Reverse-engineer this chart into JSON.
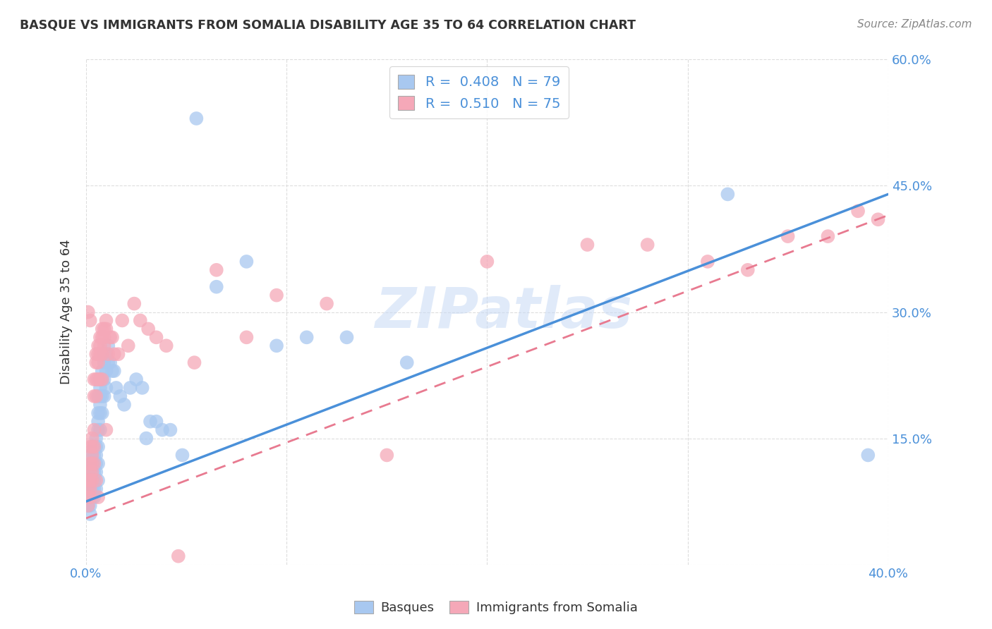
{
  "title": "BASQUE VS IMMIGRANTS FROM SOMALIA DISABILITY AGE 35 TO 64 CORRELATION CHART",
  "source": "Source: ZipAtlas.com",
  "ylabel": "Disability Age 35 to 64",
  "x_min": 0.0,
  "x_max": 0.4,
  "y_min": 0.0,
  "y_max": 0.6,
  "x_tick_positions": [
    0.0,
    0.1,
    0.2,
    0.3,
    0.4
  ],
  "x_tick_labels": [
    "0.0%",
    "",
    "",
    "",
    "40.0%"
  ],
  "y_tick_positions": [
    0.0,
    0.15,
    0.3,
    0.45,
    0.6
  ],
  "y_tick_labels_right": [
    "",
    "15.0%",
    "30.0%",
    "45.0%",
    "60.0%"
  ],
  "basque_color": "#a8c8f0",
  "somalia_color": "#f5a8b8",
  "basque_line_color": "#4a90d9",
  "somalia_line_color": "#e87a90",
  "legend_R1": "0.408",
  "legend_N1": "79",
  "legend_R2": "0.510",
  "legend_N2": "75",
  "legend_label1": "Basques",
  "legend_label2": "Immigrants from Somalia",
  "watermark": "ZIPatlas",
  "background_color": "#ffffff",
  "grid_color": "#dddddd",
  "title_color": "#333333",
  "axis_label_color": "#4a90d9",
  "right_tick_color": "#4a90d9",
  "basque_line_x0": 0.0,
  "basque_line_y0": 0.075,
  "basque_line_x1": 0.4,
  "basque_line_y1": 0.44,
  "somalia_line_x0": 0.0,
  "somalia_line_y0": 0.055,
  "somalia_line_x1": 0.4,
  "somalia_line_y1": 0.415,
  "basque_scatter_x": [
    0.001,
    0.001,
    0.001,
    0.001,
    0.002,
    0.002,
    0.002,
    0.002,
    0.002,
    0.002,
    0.002,
    0.003,
    0.003,
    0.003,
    0.003,
    0.003,
    0.003,
    0.004,
    0.004,
    0.004,
    0.004,
    0.004,
    0.004,
    0.005,
    0.005,
    0.005,
    0.005,
    0.005,
    0.005,
    0.006,
    0.006,
    0.006,
    0.006,
    0.006,
    0.006,
    0.006,
    0.007,
    0.007,
    0.007,
    0.007,
    0.007,
    0.007,
    0.008,
    0.008,
    0.008,
    0.008,
    0.009,
    0.009,
    0.009,
    0.009,
    0.01,
    0.01,
    0.01,
    0.011,
    0.011,
    0.012,
    0.013,
    0.014,
    0.015,
    0.017,
    0.019,
    0.022,
    0.025,
    0.028,
    0.03,
    0.032,
    0.035,
    0.038,
    0.042,
    0.048,
    0.055,
    0.065,
    0.08,
    0.095,
    0.11,
    0.13,
    0.16,
    0.32,
    0.39
  ],
  "basque_scatter_y": [
    0.09,
    0.08,
    0.07,
    0.1,
    0.1,
    0.09,
    0.11,
    0.08,
    0.13,
    0.07,
    0.06,
    0.12,
    0.11,
    0.1,
    0.09,
    0.08,
    0.12,
    0.14,
    0.13,
    0.11,
    0.1,
    0.09,
    0.08,
    0.14,
    0.15,
    0.13,
    0.12,
    0.11,
    0.09,
    0.2,
    0.18,
    0.17,
    0.16,
    0.14,
    0.12,
    0.1,
    0.22,
    0.21,
    0.2,
    0.19,
    0.18,
    0.16,
    0.23,
    0.22,
    0.2,
    0.18,
    0.25,
    0.24,
    0.22,
    0.2,
    0.25,
    0.23,
    0.21,
    0.26,
    0.24,
    0.24,
    0.23,
    0.23,
    0.21,
    0.2,
    0.19,
    0.21,
    0.22,
    0.21,
    0.15,
    0.17,
    0.17,
    0.16,
    0.16,
    0.13,
    0.53,
    0.33,
    0.36,
    0.26,
    0.27,
    0.27,
    0.24,
    0.44,
    0.13
  ],
  "somalia_scatter_x": [
    0.001,
    0.001,
    0.001,
    0.001,
    0.001,
    0.002,
    0.002,
    0.002,
    0.002,
    0.002,
    0.002,
    0.002,
    0.003,
    0.003,
    0.003,
    0.003,
    0.003,
    0.003,
    0.004,
    0.004,
    0.004,
    0.004,
    0.004,
    0.005,
    0.005,
    0.005,
    0.005,
    0.005,
    0.006,
    0.006,
    0.006,
    0.006,
    0.006,
    0.007,
    0.007,
    0.007,
    0.007,
    0.008,
    0.008,
    0.008,
    0.008,
    0.009,
    0.009,
    0.009,
    0.01,
    0.01,
    0.01,
    0.011,
    0.012,
    0.013,
    0.014,
    0.016,
    0.018,
    0.021,
    0.024,
    0.027,
    0.031,
    0.035,
    0.04,
    0.046,
    0.054,
    0.065,
    0.08,
    0.095,
    0.12,
    0.15,
    0.2,
    0.25,
    0.28,
    0.31,
    0.33,
    0.35,
    0.37,
    0.385,
    0.395
  ],
  "somalia_scatter_y": [
    0.1,
    0.09,
    0.08,
    0.3,
    0.07,
    0.14,
    0.12,
    0.11,
    0.1,
    0.09,
    0.29,
    0.08,
    0.15,
    0.14,
    0.13,
    0.12,
    0.11,
    0.1,
    0.22,
    0.2,
    0.16,
    0.14,
    0.12,
    0.25,
    0.24,
    0.22,
    0.2,
    0.1,
    0.26,
    0.25,
    0.24,
    0.22,
    0.08,
    0.27,
    0.26,
    0.25,
    0.22,
    0.28,
    0.27,
    0.25,
    0.22,
    0.28,
    0.27,
    0.26,
    0.29,
    0.28,
    0.16,
    0.25,
    0.27,
    0.27,
    0.25,
    0.25,
    0.29,
    0.26,
    0.31,
    0.29,
    0.28,
    0.27,
    0.26,
    0.01,
    0.24,
    0.35,
    0.27,
    0.32,
    0.31,
    0.13,
    0.36,
    0.38,
    0.38,
    0.36,
    0.35,
    0.39,
    0.39,
    0.42,
    0.41
  ]
}
